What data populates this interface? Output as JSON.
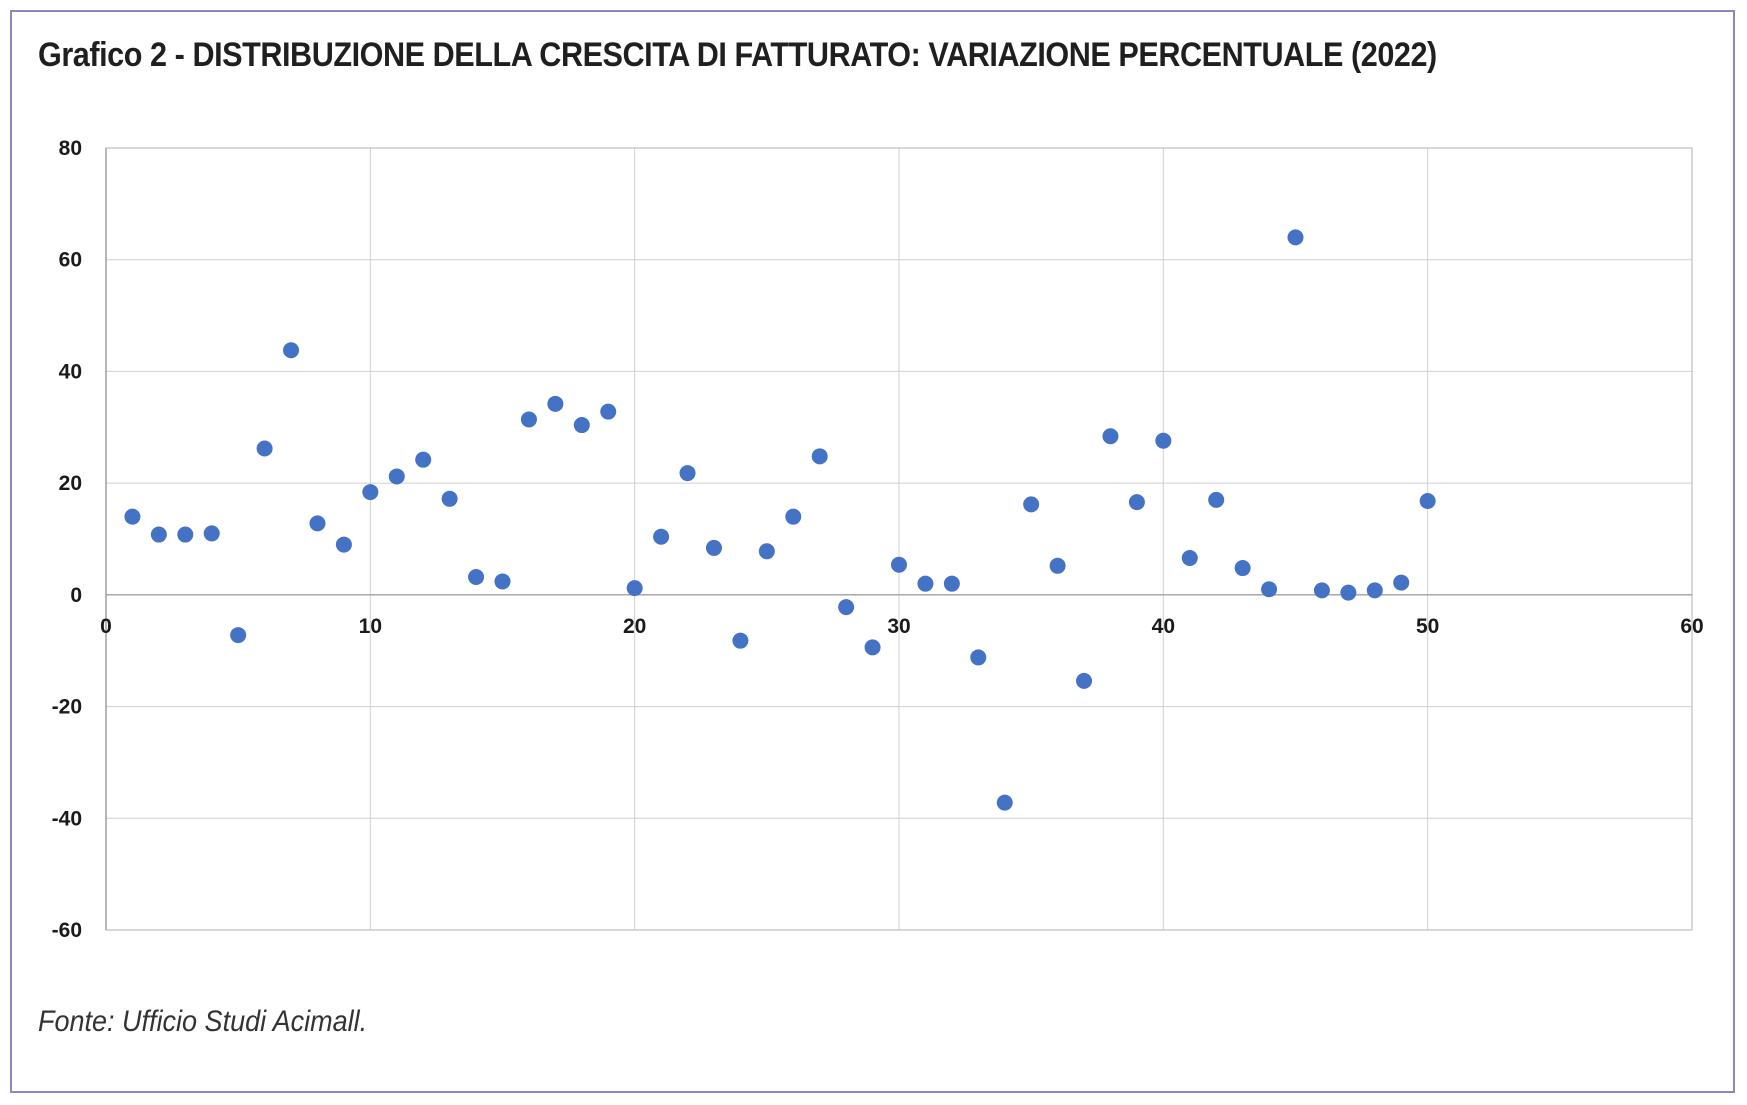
{
  "chart_data": {
    "type": "scatter",
    "title": "Grafico 2 - DISTRIBUZIONE DELLA CRESCITA DI FATTURATO: VARIAZIONE PERCENTUALE (2022)",
    "source": "Fonte: Ufficio Studi Acimall.",
    "xlim": [
      0,
      60
    ],
    "ylim": [
      -60,
      80
    ],
    "x_ticks": [
      "0",
      "10",
      "20",
      "30",
      "40",
      "50",
      "60"
    ],
    "y_ticks": [
      "80",
      "60",
      "40",
      "20",
      "0",
      "-20",
      "-40",
      "-60"
    ],
    "grid": true,
    "point_color": "#4472c4",
    "x": [
      1,
      2,
      3,
      4,
      5,
      6,
      7,
      8,
      9,
      10,
      11,
      12,
      13,
      14,
      15,
      16,
      17,
      18,
      19,
      20,
      21,
      22,
      23,
      24,
      25,
      26,
      27,
      28,
      29,
      30,
      31,
      32,
      33,
      34,
      35,
      36,
      37,
      38,
      39,
      40,
      41,
      42,
      43,
      44,
      45,
      46,
      47,
      48,
      49,
      50
    ],
    "y": [
      14,
      10.8,
      10.8,
      11,
      -7.2,
      26.2,
      43.8,
      12.8,
      9,
      18.4,
      21.2,
      24.2,
      17.2,
      3.2,
      2.4,
      31.4,
      34.2,
      30.4,
      32.8,
      1.2,
      10.4,
      21.8,
      8.4,
      -8.2,
      7.8,
      14,
      24.8,
      -2.2,
      -9.4,
      5.4,
      2,
      2,
      -11.2,
      -37.2,
      16.2,
      5.2,
      -15.4,
      28.4,
      16.6,
      27.6,
      6.6,
      17,
      4.8,
      1,
      64,
      0.8,
      0.4,
      0.8,
      2.2,
      16.8
    ]
  }
}
